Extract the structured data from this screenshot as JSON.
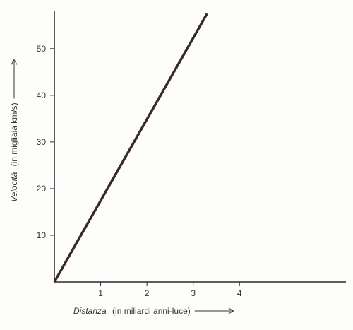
{
  "chart_data": {
    "type": "line",
    "title": "",
    "xlabel": {
      "italic": "Distanza",
      "normal": "(in miliardi anni-luce)"
    },
    "ylabel": {
      "italic": "Velocità",
      "normal": "(in migliaia km/s)"
    },
    "xlim": [
      0,
      6.3
    ],
    "ylim": [
      0,
      58
    ],
    "x_ticks": [
      1,
      2,
      3,
      4
    ],
    "y_ticks": [
      10,
      20,
      30,
      40,
      50
    ],
    "grid": false,
    "series": [
      {
        "x": [
          0,
          3.3
        ],
        "y": [
          0,
          57.5
        ]
      }
    ],
    "colors": {
      "line": "#3a2a24",
      "axis": "#2a2a2a",
      "text": "#333333"
    }
  }
}
